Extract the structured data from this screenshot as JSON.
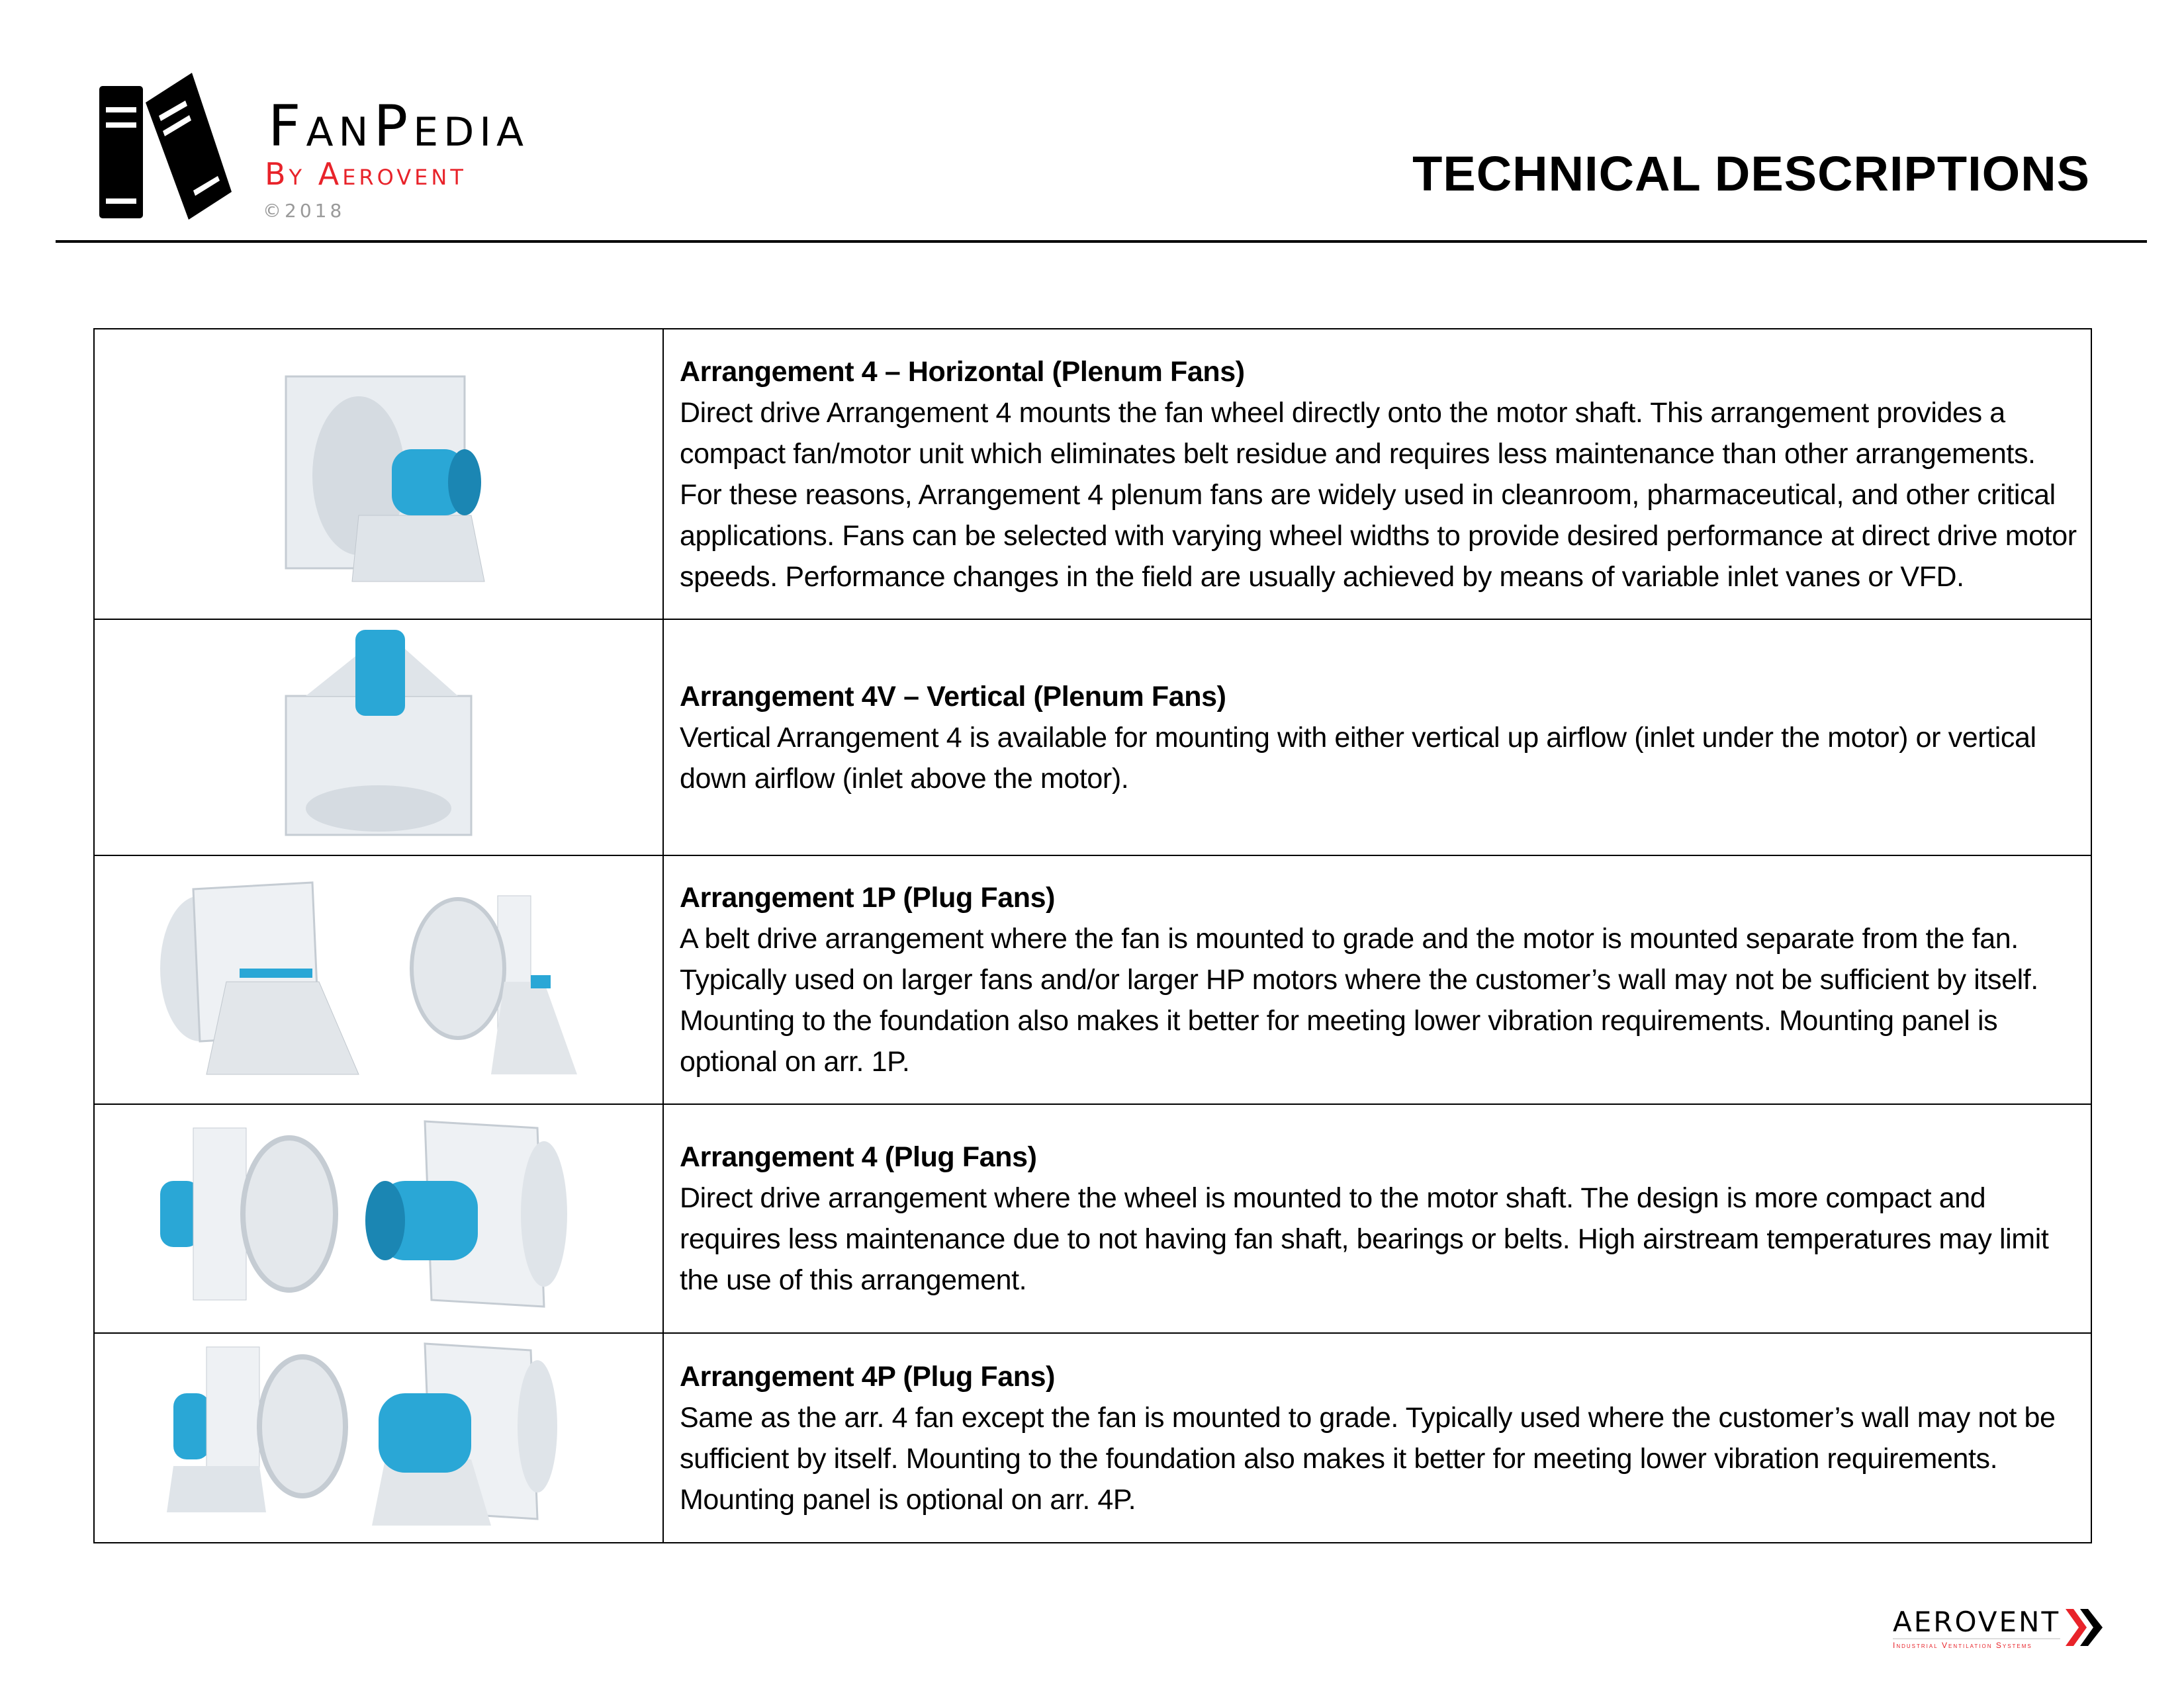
{
  "header": {
    "brand": "FanPedia",
    "byline": "By Aerovent",
    "copyright": "©2018",
    "page_title": "TECHNICAL DESCRIPTIONS",
    "logo_icon": "books-icon"
  },
  "rows": [
    {
      "title": "Arrangement 4 – Horizontal (Plenum Fans)",
      "text": "Direct drive Arrangement 4 mounts the fan wheel directly onto the motor shaft. This arrangement provides a compact fan/motor unit which eliminates belt residue and requires less maintenance than other arrangements. For these reasons, Arrangement 4 plenum fans are widely used in cleanroom, pharmaceutical, and other critical applications. Fans can be selected with varying wheel widths to provide desired performance at direct drive motor speeds. Performance changes in the field are usually achieved by means of variable inlet vanes or VFD."
    },
    {
      "title": "Arrangement 4V – Vertical (Plenum Fans)",
      "text": "Vertical Arrangement 4 is available for mounting with either vertical up airflow (inlet under the motor) or vertical down airflow (inlet above the motor)."
    },
    {
      "title": "Arrangement 1P (Plug Fans)",
      "text": "A belt drive arrangement where the fan is mounted to grade and the motor is mounted separate from the fan.  Typically used on larger fans and/or larger HP motors where the customer’s wall may not be sufficient by itself.  Mounting to the foundation also makes it better for meeting lower vibration requirements.  Mounting panel is optional on arr. 1P."
    },
    {
      "title": "Arrangement 4 (Plug Fans)",
      "text": "Direct drive arrangement where the wheel is mounted to the motor shaft.  The design is more compact and requires less maintenance due to not having fan shaft, bearings or belts.  High airstream temperatures may limit the use of this arrangement."
    },
    {
      "title": "Arrangement 4P (Plug Fans)",
      "text": "Same as the arr. 4 fan except the fan is mounted to grade.  Typically used where the customer’s wall may not be sufficient by itself.  Mounting to the foundation also makes it better for meeting lower vibration requirements.  Mounting panel is optional on arr. 4P."
    }
  ],
  "footer": {
    "logo_name": "Aerovent",
    "logo_tagline": "Industrial Ventilation Systems"
  },
  "colors": {
    "accent_red": "#e8232a",
    "motor_blue": "#2aa7d6",
    "housing_gray": "#e6eaee"
  }
}
